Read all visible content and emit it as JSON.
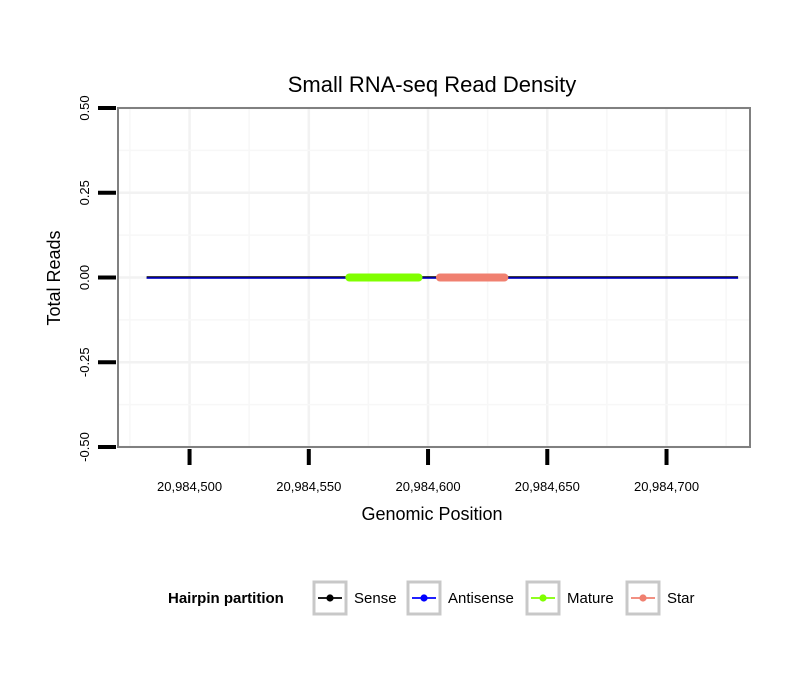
{
  "chart_data": {
    "type": "line",
    "title": "Small RNA-seq Read Density",
    "xlabel": "Genomic Position",
    "ylabel": "Total Reads",
    "xlim": [
      20984470,
      20984735
    ],
    "ylim": [
      -0.5,
      0.5
    ],
    "x_ticks": [
      20984500,
      20984550,
      20984600,
      20984650,
      20984700
    ],
    "x_tick_labels": [
      "20,984,500",
      "20,984,550",
      "20,984,600",
      "20,984,650",
      "20,984,700"
    ],
    "y_ticks": [
      0.5,
      0.25,
      0,
      -0.25,
      -0.5
    ],
    "y_tick_labels": [
      "0.50",
      "0.25",
      "0.00",
      "-0.25",
      "-0.50"
    ],
    "grid": true,
    "series": [
      {
        "name": "Sense",
        "color": "#000000",
        "x": [
          20984482,
          20984730
        ],
        "y": [
          0,
          0
        ]
      },
      {
        "name": "Antisense",
        "color": "#0000ff",
        "x": [
          20984482,
          20984730
        ],
        "y": [
          0,
          0
        ]
      },
      {
        "name": "Mature",
        "color": "#80ff00",
        "x": [
          20984567,
          20984596
        ],
        "y": [
          0,
          0
        ]
      },
      {
        "name": "Star",
        "color": "#f08070",
        "x": [
          20984605,
          20984632
        ],
        "y": [
          0,
          0
        ]
      }
    ],
    "legend": {
      "title": "Hairpin partition",
      "placement": "bottom",
      "items": [
        "Sense",
        "Antisense",
        "Mature",
        "Star"
      ]
    }
  }
}
